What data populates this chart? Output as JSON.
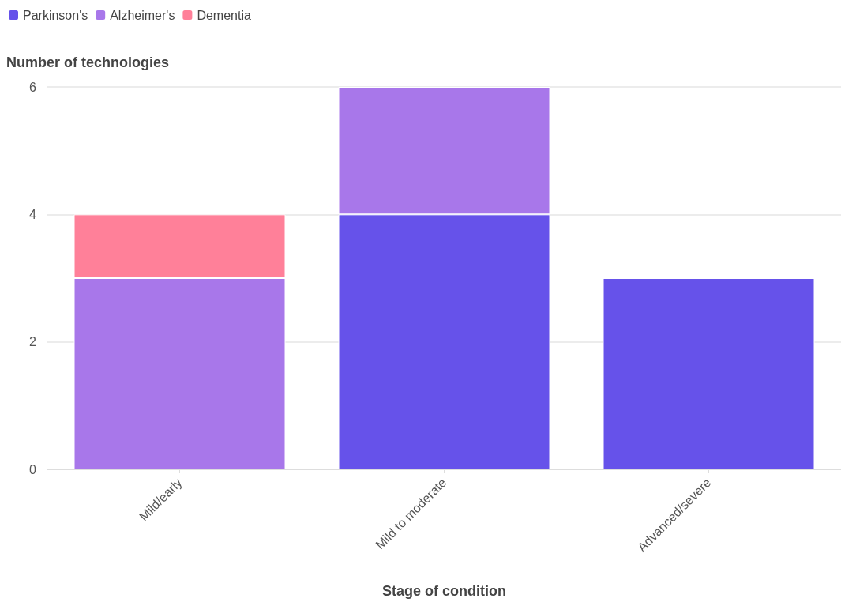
{
  "chart_data": {
    "type": "bar",
    "stacked": true,
    "ylabel": "Number of technologies",
    "xlabel": "Stage of condition",
    "categories": [
      "Mild/early",
      "Mild to moderate",
      "Advanced/severe"
    ],
    "series": [
      {
        "name": "Parkinson's",
        "color": "#6652ea",
        "values": [
          null,
          4,
          3
        ]
      },
      {
        "name": "Alzheimer's",
        "color": "#a877ea",
        "values": [
          3,
          2,
          null
        ]
      },
      {
        "name": "Dementia",
        "color": "#ff8099",
        "values": [
          1,
          null,
          null
        ]
      }
    ],
    "ylim": [
      0,
      6
    ],
    "yticks": [
      0,
      2,
      4,
      6
    ],
    "grid": "y",
    "legend": "top left"
  }
}
